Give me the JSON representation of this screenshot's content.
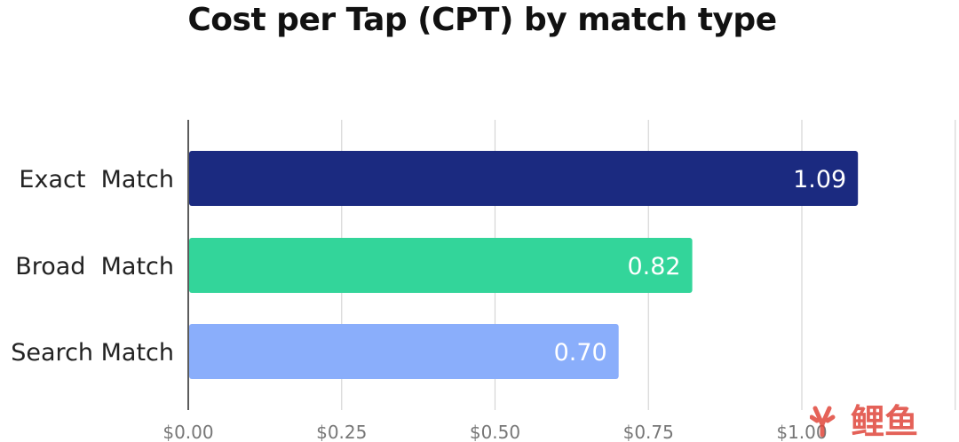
{
  "chart_data": {
    "type": "bar",
    "orientation": "horizontal",
    "title": "Cost per Tap (CPT) by match type",
    "categories": [
      "Exact  Match",
      "Broad  Match",
      "Search Match"
    ],
    "values": [
      1.09,
      0.82,
      0.7
    ],
    "data_labels": [
      "1.09",
      "0.82",
      "0.70"
    ],
    "colors": [
      "#1b2a80",
      "#33d59a",
      "#8aaefb"
    ],
    "xlim": [
      0,
      1.25
    ],
    "x_ticks": [
      0,
      0.25,
      0.5,
      0.75,
      1.0
    ],
    "x_tick_labels": [
      "$0.00",
      "$0.25",
      "$0.50",
      "$0.75",
      "$1.00"
    ],
    "grid": true,
    "xlabel": "",
    "ylabel": ""
  },
  "watermark": {
    "text": "鲤鱼",
    "color": "#e0463b"
  }
}
